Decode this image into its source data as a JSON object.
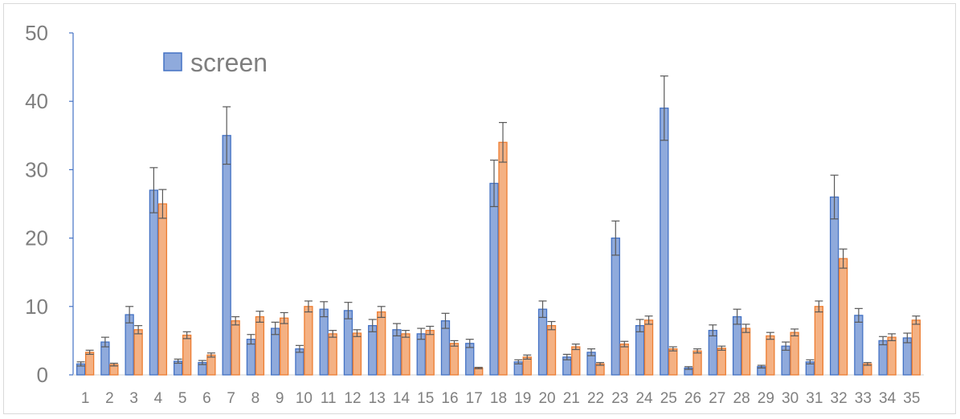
{
  "chart_data": {
    "type": "bar",
    "title": "",
    "xlabel": "",
    "ylabel": "",
    "ylim": [
      0,
      50
    ],
    "yticks": [
      0,
      10,
      20,
      30,
      40,
      50
    ],
    "grid": false,
    "legend_position": "top-left",
    "categories": [
      "1",
      "2",
      "3",
      "4",
      "5",
      "6",
      "7",
      "8",
      "9",
      "10",
      "11",
      "12",
      "13",
      "14",
      "15",
      "16",
      "17",
      "18",
      "19",
      "20",
      "21",
      "22",
      "23",
      "24",
      "25",
      "26",
      "27",
      "28",
      "29",
      "30",
      "31",
      "32",
      "33",
      "34",
      "35"
    ],
    "series": [
      {
        "name": "screen",
        "color": "#8faadc",
        "stroke": "#4472c4",
        "values": [
          1.6,
          4.8,
          8.8,
          27,
          2.0,
          1.8,
          35,
          5.2,
          6.8,
          3.8,
          9.6,
          9.4,
          7.2,
          6.6,
          6.0,
          7.9,
          4.6,
          28,
          1.9,
          9.6,
          2.6,
          3.3,
          20,
          7.2,
          39,
          1.0,
          6.5,
          8.5,
          1.2,
          4.2,
          1.9,
          26,
          8.7,
          5.0,
          5.4
        ],
        "errors": [
          0.3,
          0.7,
          1.2,
          3.3,
          0.3,
          0.3,
          4.2,
          0.7,
          0.9,
          0.5,
          1.1,
          1.2,
          0.9,
          0.9,
          0.8,
          1.1,
          0.6,
          3.4,
          0.3,
          1.2,
          0.4,
          0.5,
          2.5,
          0.9,
          4.7,
          0.2,
          0.8,
          1.1,
          0.2,
          0.6,
          0.3,
          3.2,
          1.0,
          0.6,
          0.7
        ]
      },
      {
        "name": "",
        "color": "#f4b183",
        "stroke": "#ed7d31",
        "values": [
          3.3,
          1.5,
          6.6,
          25,
          5.8,
          2.9,
          7.9,
          8.5,
          8.3,
          10.0,
          6.0,
          6.1,
          9.2,
          6.0,
          6.5,
          4.6,
          1.0,
          34,
          2.6,
          7.2,
          4.1,
          1.6,
          4.5,
          8.0,
          3.8,
          3.5,
          3.9,
          6.8,
          5.7,
          6.2,
          10.0,
          17,
          1.6,
          5.5,
          8.0
        ],
        "errors": [
          0.3,
          0.2,
          0.6,
          2.1,
          0.5,
          0.3,
          0.6,
          0.8,
          0.8,
          0.8,
          0.5,
          0.5,
          0.8,
          0.5,
          0.6,
          0.4,
          0.1,
          2.9,
          0.3,
          0.6,
          0.4,
          0.2,
          0.4,
          0.6,
          0.3,
          0.3,
          0.3,
          0.6,
          0.5,
          0.5,
          0.8,
          1.4,
          0.2,
          0.5,
          0.6
        ]
      }
    ]
  }
}
